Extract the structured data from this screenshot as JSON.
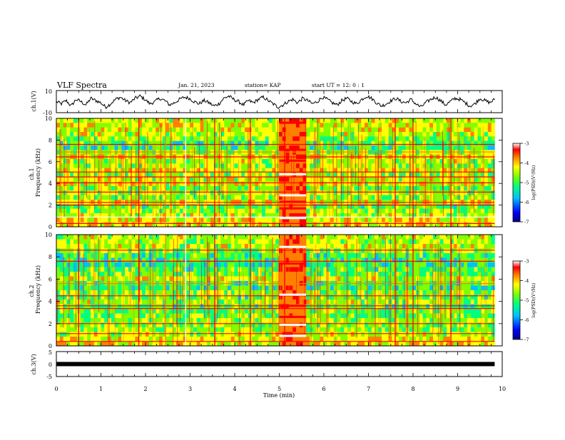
{
  "header": {
    "title": "VLF Spectra",
    "date": "Jan. 21, 2023",
    "station": "station= KAP",
    "start": "start UT =  12: 0  : 1"
  },
  "chart_data": [
    {
      "type": "line",
      "id": "ch1-waveform",
      "ylabel": "ch.1(V)",
      "ylim": [
        -10,
        10
      ],
      "yticks": [
        "10",
        "-10"
      ],
      "xlim": [
        0,
        10
      ],
      "x_end": 9.83,
      "series": [
        {
          "color": "#000000",
          "values": [
            0,
            -2,
            1,
            -4,
            2,
            0,
            -3,
            3,
            1,
            -1,
            -5,
            -2,
            2,
            4,
            1,
            -1,
            3,
            5,
            2,
            -2,
            0,
            3,
            1,
            -3,
            -1,
            2,
            4,
            3,
            0,
            -2,
            1,
            -1,
            -4,
            -2,
            3,
            5,
            2,
            0,
            -3,
            1,
            -1,
            2,
            4,
            1,
            -2,
            -5,
            -3,
            0,
            2,
            -1,
            3,
            1,
            -2,
            0,
            4,
            2,
            -1,
            -3,
            1,
            3,
            0,
            -2,
            2,
            5,
            3,
            -1,
            -4,
            -2,
            1,
            3,
            0,
            -1,
            2,
            -2,
            -5,
            -1,
            2,
            4,
            1,
            -3,
            0,
            3,
            2,
            -1,
            -4,
            -2,
            3,
            1,
            -1,
            2
          ]
        }
      ]
    },
    {
      "type": "heatmap",
      "id": "ch1-spectrogram",
      "ylabel": "Frequency (kHz)",
      "panel_label": "ch.1",
      "ylim": [
        0,
        10
      ],
      "yticks": [
        "0",
        "2",
        "4",
        "6",
        "8",
        "10"
      ],
      "xlim": [
        0,
        10
      ],
      "x_end": 9.83,
      "color_scale": {
        "label": "log(PSD)(V²/Hz)",
        "min": -7,
        "max": -3,
        "ticks": [
          "-3",
          "-4",
          "-5",
          "-6",
          "-7"
        ],
        "colors": [
          "#000080",
          "#0000ff",
          "#00bfff",
          "#00ff80",
          "#80ff00",
          "#ffff00",
          "#ff8000",
          "#ff0000",
          "#ffffff"
        ]
      },
      "band_rows": [
        {
          "f": 9.8,
          "lvl": 4.6
        },
        {
          "f": 9.3,
          "lvl": 4.8
        },
        {
          "f": 8.8,
          "lvl": 4.7
        },
        {
          "f": 8.3,
          "lvl": 4.5
        },
        {
          "f": 7.8,
          "lvl": 4.0
        },
        {
          "f": 7.4,
          "lvl": 3.5
        },
        {
          "f": 7.0,
          "lvl": 3.2
        },
        {
          "f": 6.6,
          "lvl": 4.2
        },
        {
          "f": 6.2,
          "lvl": 4.9
        },
        {
          "f": 5.8,
          "lvl": 4.4
        },
        {
          "f": 5.4,
          "lvl": 4.3
        },
        {
          "f": 5.0,
          "lvl": 4.8
        },
        {
          "f": 4.6,
          "lvl": 4.2
        },
        {
          "f": 4.2,
          "lvl": 4.5
        },
        {
          "f": 3.8,
          "lvl": 4.6
        },
        {
          "f": 3.4,
          "lvl": 3.8
        },
        {
          "f": 3.0,
          "lvl": 4.3
        },
        {
          "f": 2.6,
          "lvl": 4.1
        },
        {
          "f": 2.2,
          "lvl": 4.9
        },
        {
          "f": 1.8,
          "lvl": 3.6
        },
        {
          "f": 1.4,
          "lvl": 4.2
        },
        {
          "f": 1.0,
          "lvl": 4.4
        },
        {
          "f": 0.6,
          "lvl": 5.0
        },
        {
          "f": 0.2,
          "lvl": 5.2
        }
      ],
      "lines_khz": [
        {
          "f": 0.3,
          "lvl": 7.4
        },
        {
          "f": 0.9,
          "lvl": 7.6
        },
        {
          "f": 2.0,
          "lvl": 7.2
        },
        {
          "f": 2.25,
          "lvl": 7.0
        },
        {
          "f": 3.2,
          "lvl": 6.8
        },
        {
          "f": 4.05,
          "lvl": 7.0
        },
        {
          "f": 4.6,
          "lvl": 6.6
        },
        {
          "f": 5.05,
          "lvl": 7.3
        },
        {
          "f": 6.45,
          "lvl": 6.9
        },
        {
          "f": 6.9,
          "lvl": 6.4
        },
        {
          "f": 7.6,
          "lvl": 6.8
        }
      ],
      "events_min": [
        {
          "t": 0.5,
          "lvl": 6.6
        },
        {
          "t": 1.85,
          "lvl": 7.2
        },
        {
          "t": 2.45,
          "lvl": 6.4
        },
        {
          "t": 2.9,
          "lvl": 7.6
        },
        {
          "t": 3.55,
          "lvl": 6.5
        },
        {
          "t": 4.35,
          "lvl": 6.7
        },
        {
          "t": 5.12,
          "lvl": 6.6
        },
        {
          "t": 7.6,
          "lvl": 6.5
        },
        {
          "t": 8.0,
          "lvl": 7.2
        },
        {
          "t": 8.85,
          "lvl": 6.6
        }
      ],
      "burst": {
        "t0": 5.0,
        "t1": 5.6,
        "lvl": 6.2,
        "lines_khz": [
          {
            "f": 4.85,
            "lvl": 7.8
          },
          {
            "f": 2.9,
            "lvl": 7.6
          },
          {
            "f": 2.3,
            "lvl": 7.4
          },
          {
            "f": 1.7,
            "lvl": 7.4
          },
          {
            "f": 0.8,
            "lvl": 7.8
          },
          {
            "f": 6.1,
            "lvl": 7.2
          },
          {
            "f": 7.1,
            "lvl": 7.0
          },
          {
            "f": 9.6,
            "lvl": 7.2
          }
        ]
      }
    },
    {
      "type": "heatmap",
      "id": "ch2-spectrogram",
      "ylabel": "Frequency (kHz)",
      "panel_label": "ch.2",
      "ylim": [
        0,
        10
      ],
      "yticks": [
        "0",
        "2",
        "4",
        "6",
        "8",
        "10"
      ],
      "xlim": [
        0,
        10
      ],
      "x_end": 9.83,
      "color_scale": {
        "label": "log(PSD)(V²/Hz)",
        "min": -7,
        "max": -3,
        "ticks": [
          "-3",
          "-4",
          "-5",
          "-6",
          "-7"
        ],
        "colors": [
          "#000080",
          "#0000ff",
          "#00bfff",
          "#00ff80",
          "#80ff00",
          "#ffff00",
          "#ff8000",
          "#ff0000",
          "#ffffff"
        ]
      },
      "band_rows": [
        {
          "f": 9.8,
          "lvl": 4.5
        },
        {
          "f": 9.3,
          "lvl": 4.3
        },
        {
          "f": 8.8,
          "lvl": 4.6
        },
        {
          "f": 8.3,
          "lvl": 3.9
        },
        {
          "f": 7.8,
          "lvl": 3.4
        },
        {
          "f": 7.4,
          "lvl": 3.2
        },
        {
          "f": 7.0,
          "lvl": 3.0
        },
        {
          "f": 6.6,
          "lvl": 3.6
        },
        {
          "f": 6.2,
          "lvl": 3.8
        },
        {
          "f": 5.8,
          "lvl": 4.6
        },
        {
          "f": 5.4,
          "lvl": 3.4
        },
        {
          "f": 5.0,
          "lvl": 3.3
        },
        {
          "f": 4.6,
          "lvl": 4.2
        },
        {
          "f": 4.2,
          "lvl": 3.6
        },
        {
          "f": 3.8,
          "lvl": 4.4
        },
        {
          "f": 3.4,
          "lvl": 3.4
        },
        {
          "f": 3.0,
          "lvl": 3.8
        },
        {
          "f": 2.6,
          "lvl": 3.7
        },
        {
          "f": 2.2,
          "lvl": 4.2
        },
        {
          "f": 1.8,
          "lvl": 3.9
        },
        {
          "f": 1.4,
          "lvl": 4.2
        },
        {
          "f": 1.0,
          "lvl": 4.5
        },
        {
          "f": 0.6,
          "lvl": 4.8
        },
        {
          "f": 0.2,
          "lvl": 5.0
        }
      ],
      "lines_khz": [
        {
          "f": 0.4,
          "lvl": 7.2
        },
        {
          "f": 1.1,
          "lvl": 6.8
        },
        {
          "f": 2.0,
          "lvl": 7.0
        },
        {
          "f": 3.35,
          "lvl": 7.3
        },
        {
          "f": 3.6,
          "lvl": 6.6
        },
        {
          "f": 4.5,
          "lvl": 6.8
        },
        {
          "f": 5.6,
          "lvl": 6.4
        },
        {
          "f": 7.6,
          "lvl": 6.9
        },
        {
          "f": 8.6,
          "lvl": 6.5
        }
      ],
      "events_min": [
        {
          "t": 0.5,
          "lvl": 6.6
        },
        {
          "t": 1.85,
          "lvl": 7.2
        },
        {
          "t": 2.45,
          "lvl": 6.4
        },
        {
          "t": 2.9,
          "lvl": 7.6
        },
        {
          "t": 3.55,
          "lvl": 6.5
        },
        {
          "t": 4.35,
          "lvl": 6.7
        },
        {
          "t": 5.12,
          "lvl": 6.6
        },
        {
          "t": 7.6,
          "lvl": 6.5
        },
        {
          "t": 8.0,
          "lvl": 7.2
        },
        {
          "t": 8.85,
          "lvl": 6.6
        }
      ],
      "burst": {
        "t0": 5.0,
        "t1": 5.6,
        "lvl": 6.2,
        "lines_khz": [
          {
            "f": 8.9,
            "lvl": 7.8
          },
          {
            "f": 7.4,
            "lvl": 7.2
          },
          {
            "f": 4.6,
            "lvl": 7.8
          },
          {
            "f": 3.6,
            "lvl": 7.4
          },
          {
            "f": 2.6,
            "lvl": 7.2
          },
          {
            "f": 1.9,
            "lvl": 7.6
          },
          {
            "f": 0.9,
            "lvl": 7.6
          }
        ]
      }
    },
    {
      "type": "line",
      "id": "ch3-waveform",
      "ylabel": "ch.3(V)",
      "ylim": [
        -5,
        5
      ],
      "yticks": [
        "5",
        "0",
        "-5"
      ],
      "xlim": [
        0,
        10
      ],
      "x_end": 9.83,
      "xlabel": "Time (min)",
      "xticks": [
        "0",
        "1",
        "2",
        "3",
        "4",
        "5",
        "6",
        "7",
        "8",
        "9",
        "10"
      ],
      "series": [
        {
          "color": "#000000",
          "values": [
            0,
            0
          ]
        }
      ]
    }
  ]
}
